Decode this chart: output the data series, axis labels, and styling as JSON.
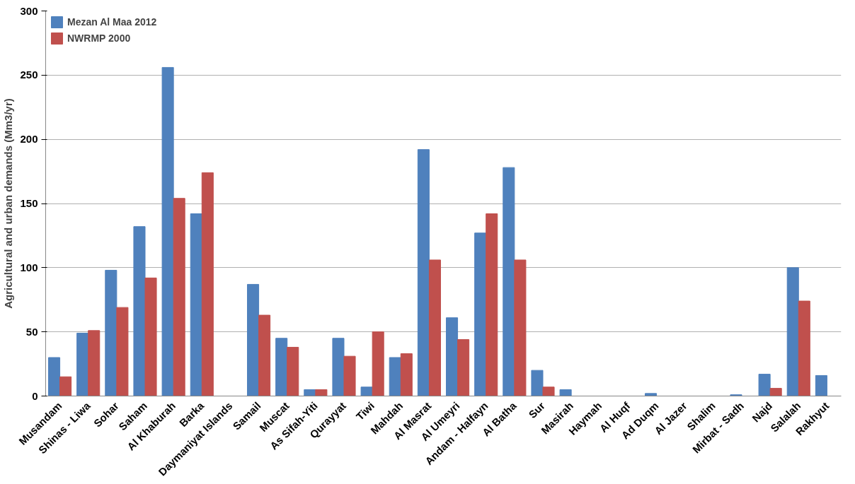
{
  "chart_data": {
    "type": "bar",
    "ylabel": "Agricultural and urban demands (Mm3/yr)",
    "categories": [
      "Musandam",
      "Shinas - Liwa",
      "Sohar",
      "Saham",
      "Al Khaburah",
      "Barka",
      "Daymaniyat Islands",
      "Samail",
      "Muscat",
      "As Sifah-Yiti",
      "Qurayyat",
      "Tiwi",
      "Mahdah",
      "Al Masrat",
      "Al Umeyri",
      "Andam - Halfayn",
      "Al Batha",
      "Sur",
      "Masirah",
      "Haymah",
      "Al Huqf",
      "Ad Duqm",
      "Al Jazer",
      "Shalim",
      "Mirbat - Sadh",
      "Najd",
      "Salalah",
      "Rakhyut"
    ],
    "series": [
      {
        "name": "Mezan Al Maa 2012",
        "color": "#4f81bd",
        "values": [
          30,
          49,
          98,
          132,
          256,
          142,
          0,
          87,
          45,
          5,
          45,
          7,
          30,
          192,
          61,
          127,
          178,
          20,
          5,
          0,
          0,
          2,
          0,
          0,
          1,
          17,
          100,
          16
        ]
      },
      {
        "name": "NWRMP 2000",
        "color": "#c0504d",
        "values": [
          15,
          51,
          69,
          92,
          154,
          174,
          0,
          63,
          38,
          5,
          31,
          50,
          33,
          106,
          44,
          142,
          106,
          7,
          0,
          0,
          0,
          0,
          0,
          0,
          0,
          6,
          74,
          0
        ]
      }
    ],
    "ylim": [
      0,
      300
    ],
    "yticks": [
      0,
      50,
      100,
      150,
      200,
      250,
      300
    ],
    "grid": "y",
    "legend": "top left"
  }
}
